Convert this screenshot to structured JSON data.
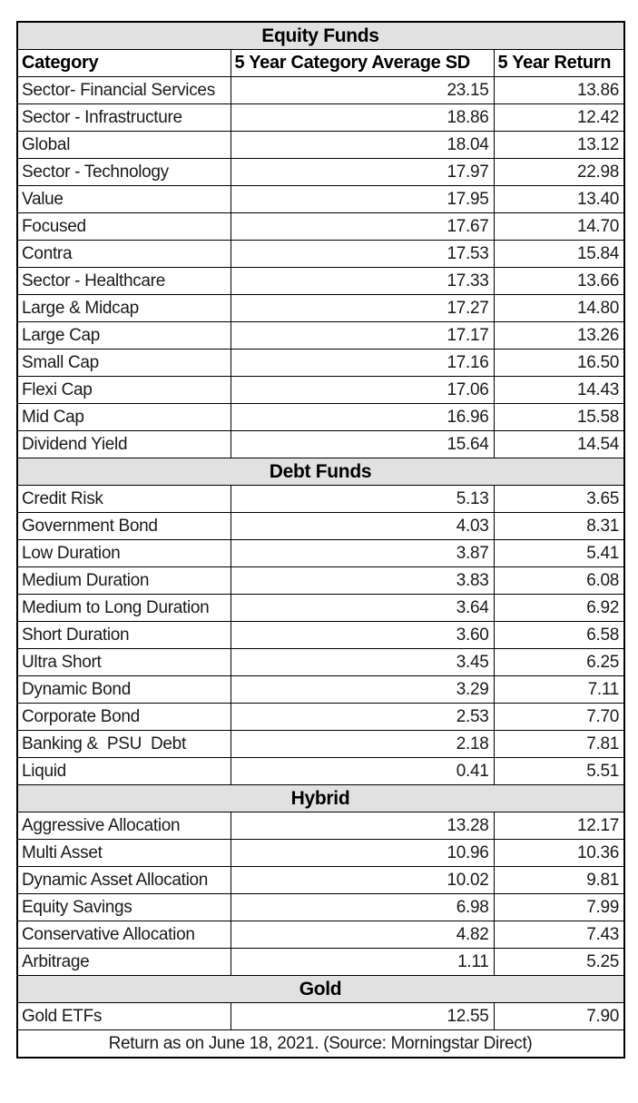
{
  "colors": {
    "page_bg": "#ffffff",
    "section_header_bg": "#e1e1e1",
    "border": "#000000",
    "text": "#1a1a1a",
    "header_text": "#000000"
  },
  "chart_data": {
    "type": "table",
    "columns": [
      "Category",
      "5 Year Category Average SD",
      "5 Year Return"
    ],
    "sections": [
      {
        "title": "Equity Funds",
        "rows": [
          {
            "category": "Sector- Financial Services",
            "sd": "23.15",
            "return": "13.86"
          },
          {
            "category": "Sector - Infrastructure",
            "sd": "18.86",
            "return": "12.42"
          },
          {
            "category": "Global",
            "sd": "18.04",
            "return": "13.12"
          },
          {
            "category": "Sector - Technology",
            "sd": "17.97",
            "return": "22.98"
          },
          {
            "category": "Value",
            "sd": "17.95",
            "return": "13.40"
          },
          {
            "category": "Focused",
            "sd": "17.67",
            "return": "14.70"
          },
          {
            "category": "Contra",
            "sd": "17.53",
            "return": "15.84"
          },
          {
            "category": "Sector - Healthcare",
            "sd": "17.33",
            "return": "13.66"
          },
          {
            "category": "Large & Midcap",
            "sd": "17.27",
            "return": "14.80"
          },
          {
            "category": "Large Cap",
            "sd": "17.17",
            "return": "13.26"
          },
          {
            "category": "Small Cap",
            "sd": "17.16",
            "return": "16.50"
          },
          {
            "category": "Flexi Cap",
            "sd": "17.06",
            "return": "14.43"
          },
          {
            "category": "Mid Cap",
            "sd": "16.96",
            "return": "15.58"
          },
          {
            "category": "Dividend Yield",
            "sd": "15.64",
            "return": "14.54"
          }
        ]
      },
      {
        "title": "Debt Funds",
        "rows": [
          {
            "category": "Credit Risk",
            "sd": "5.13",
            "return": "3.65"
          },
          {
            "category": "Government Bond",
            "sd": "4.03",
            "return": "8.31"
          },
          {
            "category": "Low Duration",
            "sd": "3.87",
            "return": "5.41"
          },
          {
            "category": "Medium Duration",
            "sd": "3.83",
            "return": "6.08"
          },
          {
            "category": "Medium to Long Duration",
            "sd": "3.64",
            "return": "6.92"
          },
          {
            "category": "Short Duration",
            "sd": "3.60",
            "return": "6.58"
          },
          {
            "category": "Ultra Short",
            "sd": "3.45",
            "return": "6.25"
          },
          {
            "category": "Dynamic Bond",
            "sd": "3.29",
            "return": "7.11"
          },
          {
            "category": "Corporate Bond",
            "sd": "2.53",
            "return": "7.70"
          },
          {
            "category": "Banking &  PSU  Debt",
            "sd": "2.18",
            "return": "7.81"
          },
          {
            "category": "Liquid",
            "sd": "0.41",
            "return": "5.51"
          }
        ]
      },
      {
        "title": "Hybrid",
        "rows": [
          {
            "category": "Aggressive Allocation",
            "sd": "13.28",
            "return": "12.17"
          },
          {
            "category": "Multi Asset",
            "sd": "10.96",
            "return": "10.36"
          },
          {
            "category": "Dynamic Asset Allocation",
            "sd": "10.02",
            "return": "9.81"
          },
          {
            "category": "Equity Savings",
            "sd": "6.98",
            "return": "7.99"
          },
          {
            "category": "Conservative Allocation",
            "sd": "4.82",
            "return": "7.43"
          },
          {
            "category": "Arbitrage",
            "sd": "1.11",
            "return": "5.25"
          }
        ]
      },
      {
        "title": "Gold",
        "rows": [
          {
            "category": "Gold ETFs",
            "sd": "12.55",
            "return": "7.90"
          }
        ]
      }
    ],
    "footer": "Return as on June 18, 2021. (Source: Morningstar Direct)"
  }
}
